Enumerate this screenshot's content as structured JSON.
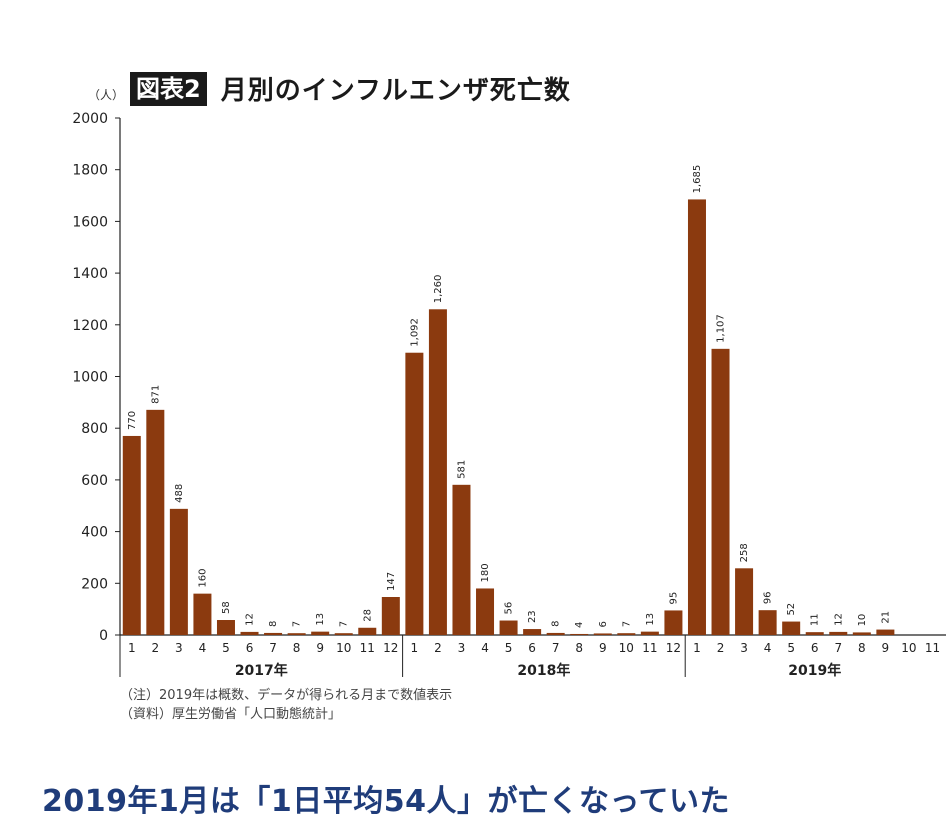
{
  "figure": {
    "label": "図表2",
    "title": "月別のインフルエンザ死亡数",
    "unit": "（人）"
  },
  "notes": [
    "（注）2019年は概数、データが得られる月まで数値表示",
    "（資料）厚生労働省「人口動態統計」"
  ],
  "headline": "2019年1月は「1日平均54人」が亡くなっていた",
  "colors": {
    "bar": "#8b3a0f",
    "headline": "#1f3c7a"
  },
  "chart_data": {
    "type": "bar",
    "ylabel": "（人）",
    "ylim": [
      0,
      2000
    ],
    "yticks": [
      0,
      200,
      400,
      600,
      800,
      1000,
      1200,
      1400,
      1600,
      1800,
      2000
    ],
    "groups": [
      {
        "name": "2017年",
        "months": [
          "1",
          "2",
          "3",
          "4",
          "5",
          "6",
          "7",
          "8",
          "9",
          "10",
          "11",
          "12"
        ],
        "values": [
          770,
          871,
          488,
          160,
          58,
          12,
          8,
          7,
          13,
          7,
          28,
          147
        ],
        "labels": [
          "770",
          "871",
          "488",
          "160",
          "58",
          "12",
          "8",
          "7",
          "13",
          "7",
          "28",
          "147"
        ]
      },
      {
        "name": "2018年",
        "months": [
          "1",
          "2",
          "3",
          "4",
          "5",
          "6",
          "7",
          "8",
          "9",
          "10",
          "11",
          "12"
        ],
        "values": [
          1092,
          1260,
          581,
          180,
          56,
          23,
          8,
          4,
          6,
          7,
          13,
          95
        ],
        "labels": [
          "1,092",
          "1,260",
          "581",
          "180",
          "56",
          "23",
          "8",
          "4",
          "6",
          "7",
          "13",
          "95"
        ]
      },
      {
        "name": "2019年",
        "months": [
          "1",
          "2",
          "3",
          "4",
          "5",
          "6",
          "7",
          "8",
          "9",
          "10",
          "11"
        ],
        "values": [
          1685,
          1107,
          258,
          96,
          52,
          11,
          12,
          10,
          21,
          null,
          null
        ],
        "labels": [
          "1,685",
          "1,107",
          "258",
          "96",
          "52",
          "11",
          "12",
          "10",
          "21",
          "",
          ""
        ]
      }
    ],
    "grid": false,
    "legend": "none"
  }
}
